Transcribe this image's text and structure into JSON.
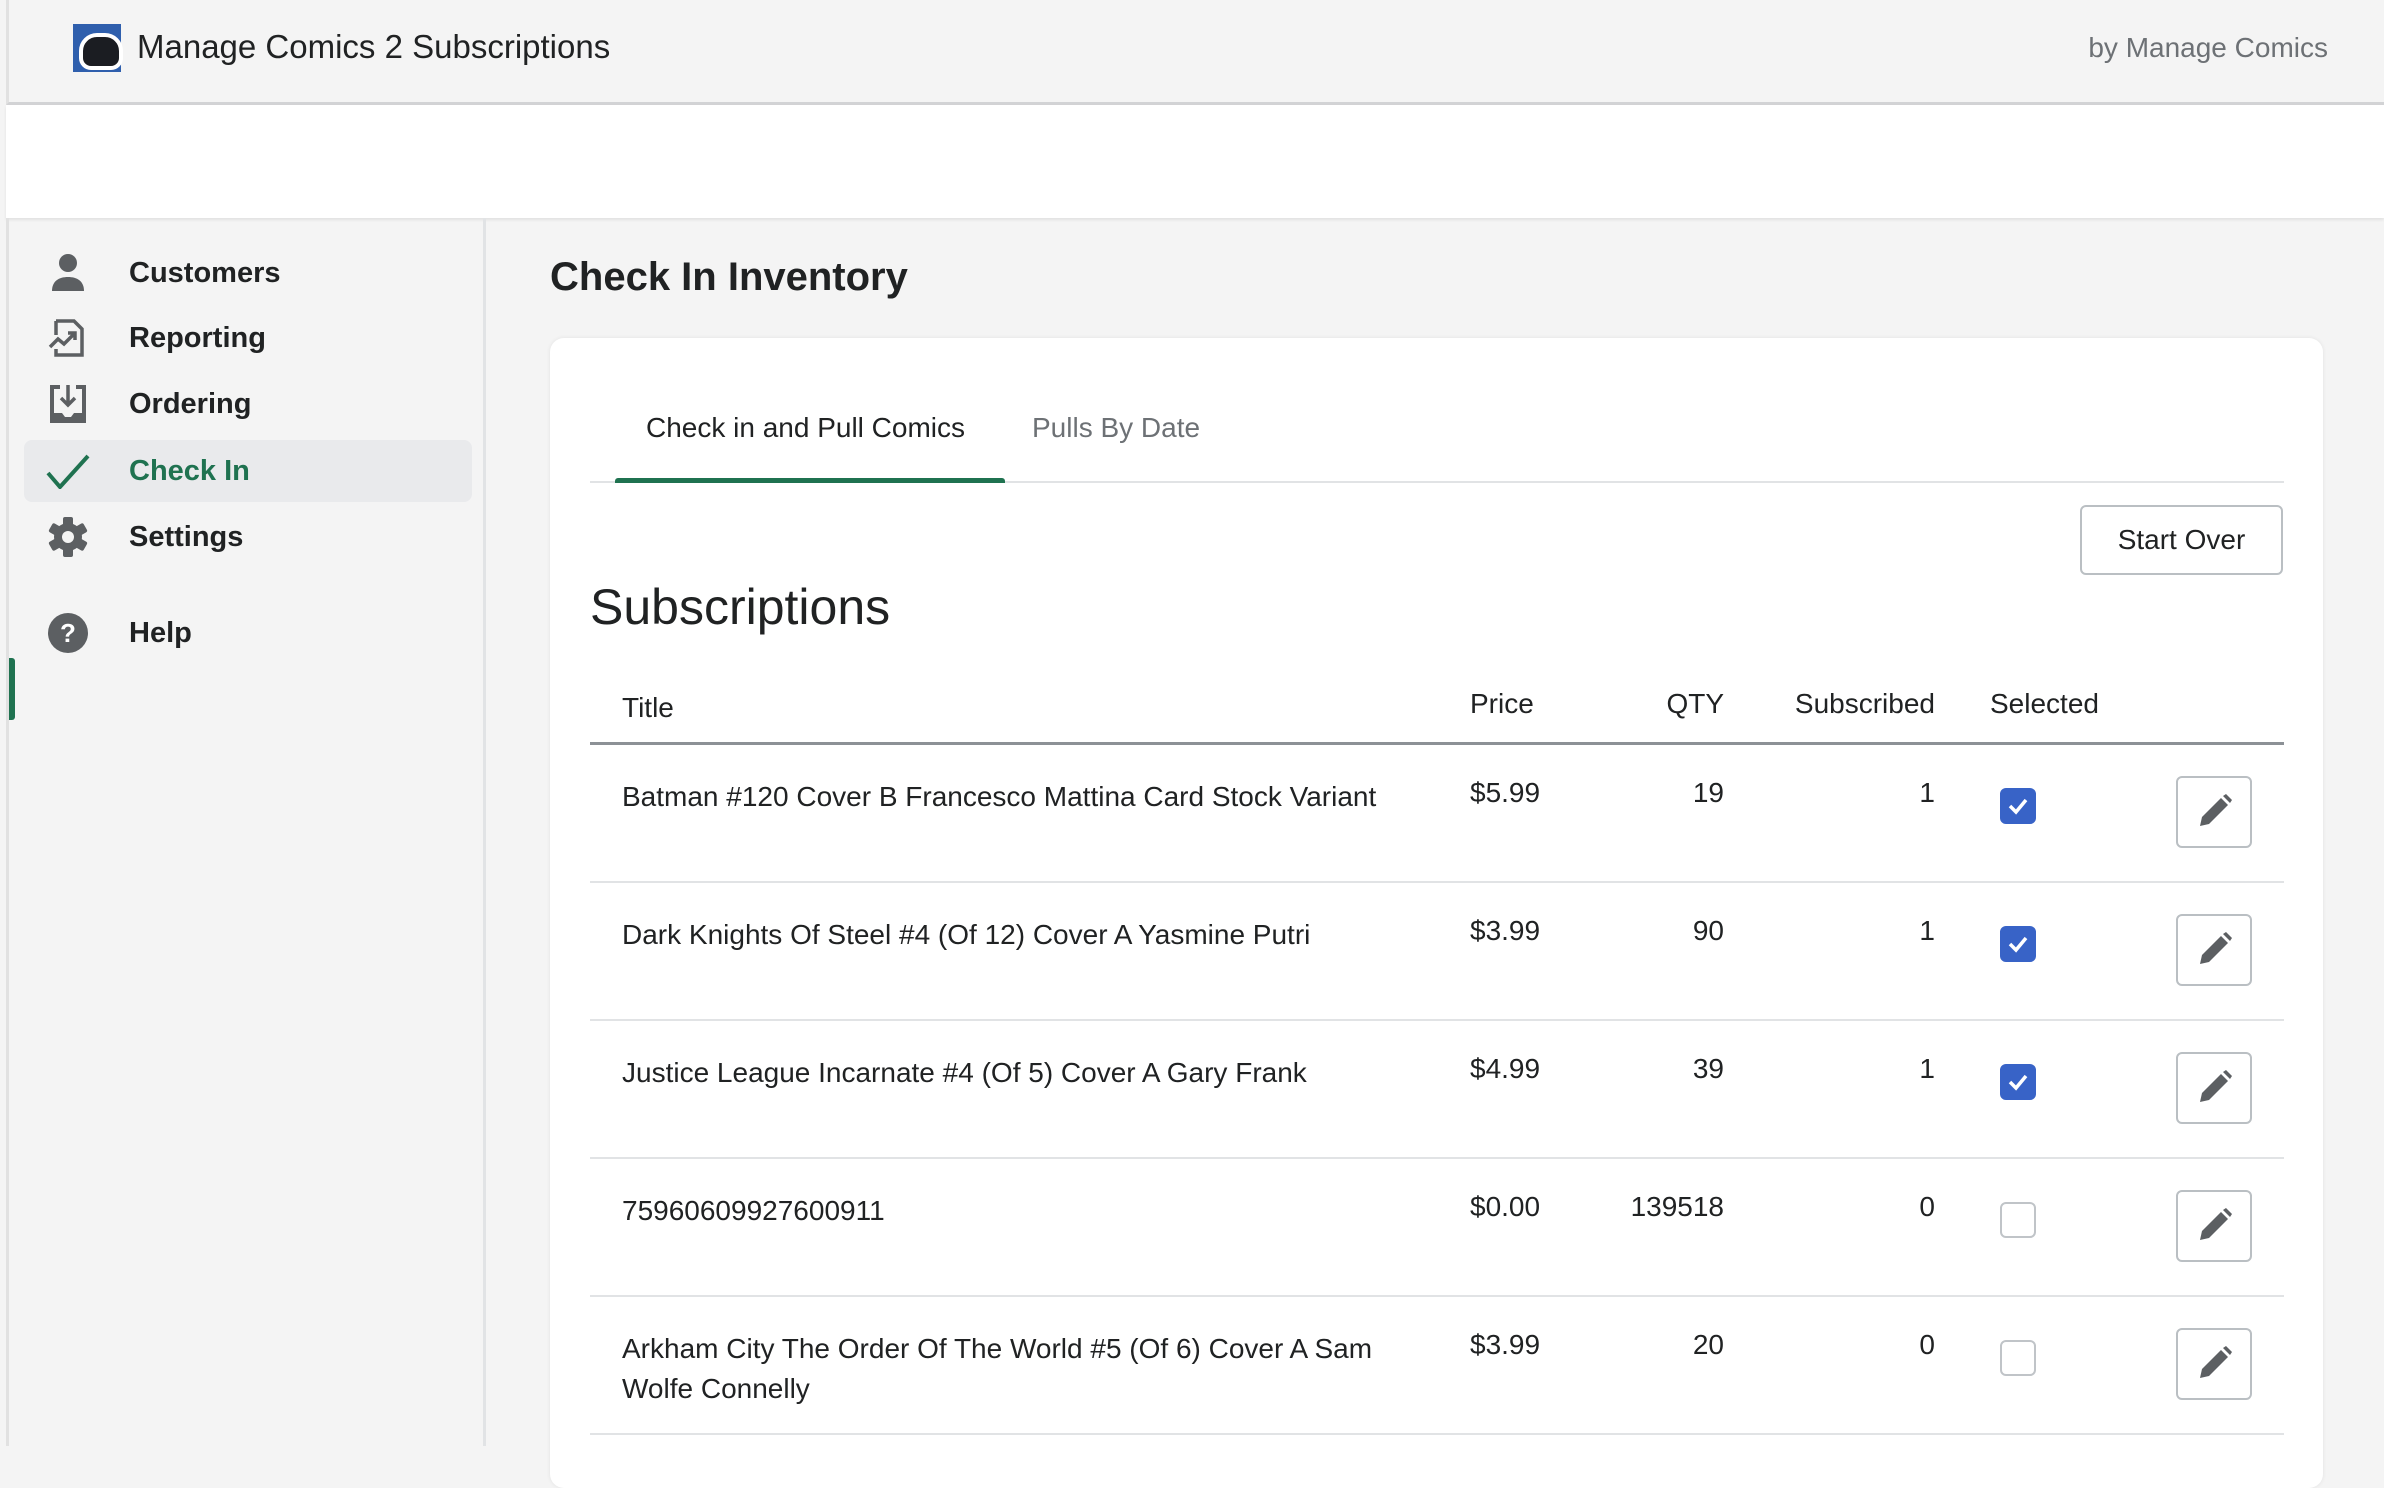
{
  "header": {
    "title": "Manage Comics 2 Subscriptions",
    "by": "by Manage Comics",
    "logo_color": "#2f5fad"
  },
  "sidebar": {
    "items": [
      {
        "label": "Customers",
        "icon": "person-icon"
      },
      {
        "label": "Reporting",
        "icon": "report-chart-icon"
      },
      {
        "label": "Ordering",
        "icon": "download-tray-icon"
      },
      {
        "label": "Check In",
        "icon": "checkmark-icon",
        "active": true
      },
      {
        "label": "Settings",
        "icon": "gear-icon"
      },
      {
        "label": "Help",
        "icon": "question-circle-icon"
      }
    ]
  },
  "accent": "#1f7250",
  "main": {
    "page_title": "Check In Inventory",
    "tabs": [
      {
        "label": "Check in and Pull Comics",
        "active": true
      },
      {
        "label": "Pulls By Date"
      }
    ],
    "start_over": "Start Over",
    "section_title": "Subscriptions",
    "columns": [
      "Title",
      "Price",
      "QTY",
      "Subscribed",
      "Selected"
    ],
    "rows": [
      {
        "title": "Batman #120 Cover B Francesco Mattina Card Stock Variant",
        "price": "$5.99",
        "qty": "19",
        "subscribed": "1",
        "selected": true
      },
      {
        "title": "Dark Knights Of Steel #4 (Of 12) Cover A Yasmine Putri",
        "price": "$3.99",
        "qty": "90",
        "subscribed": "1",
        "selected": true
      },
      {
        "title": "Justice League Incarnate #4 (Of 5) Cover A Gary Frank",
        "price": "$4.99",
        "qty": "39",
        "subscribed": "1",
        "selected": true
      },
      {
        "title": "75960609927600911",
        "price": "$0.00",
        "qty": "139518",
        "subscribed": "0",
        "selected": false
      },
      {
        "title": "Arkham City The Order Of The World #5 (Of 6) Cover A Sam Wolfe Connelly",
        "price": "$3.99",
        "qty": "20",
        "subscribed": "0",
        "selected": false
      }
    ]
  }
}
